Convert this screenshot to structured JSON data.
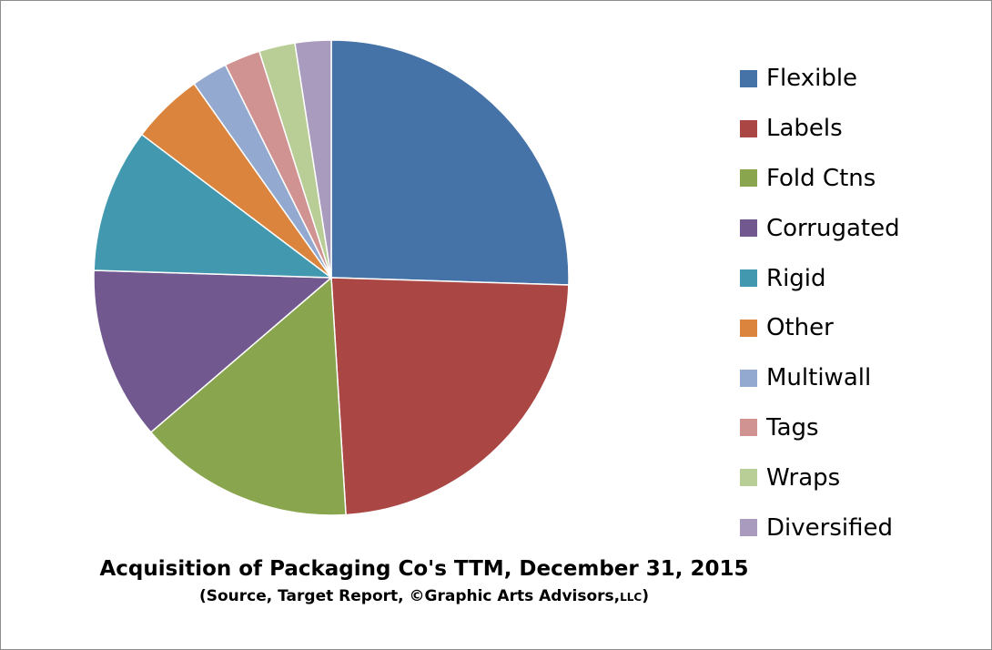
{
  "chart_data": {
    "type": "pie",
    "title": "Acquisition of Packaging Co's TTM, December 31, 2015",
    "subtitle": {
      "main": "(Source, Target Report, ©Graphic Arts Advisors,",
      "suffix": "LLC",
      "end": ")"
    },
    "legend_position": "right",
    "slices": [
      {
        "label": "Flexible",
        "value": 26.0,
        "color": "#4572A7"
      },
      {
        "label": "Labels",
        "value": 24.0,
        "color": "#AA4643"
      },
      {
        "label": "Fold Ctns",
        "value": 15.0,
        "color": "#89A54E"
      },
      {
        "label": "Corrugated",
        "value": 12.0,
        "color": "#71588F"
      },
      {
        "label": "Rigid",
        "value": 10.0,
        "color": "#4198AF"
      },
      {
        "label": "Other",
        "value": 5.0,
        "color": "#DB843D"
      },
      {
        "label": "Multiwall",
        "value": 2.5,
        "color": "#93A9CF"
      },
      {
        "label": "Tags",
        "value": 2.5,
        "color": "#D19392"
      },
      {
        "label": "Wraps",
        "value": 2.5,
        "color": "#B9CD96"
      },
      {
        "label": "Diversified",
        "value": 2.5,
        "color": "#A99BBD"
      }
    ]
  }
}
